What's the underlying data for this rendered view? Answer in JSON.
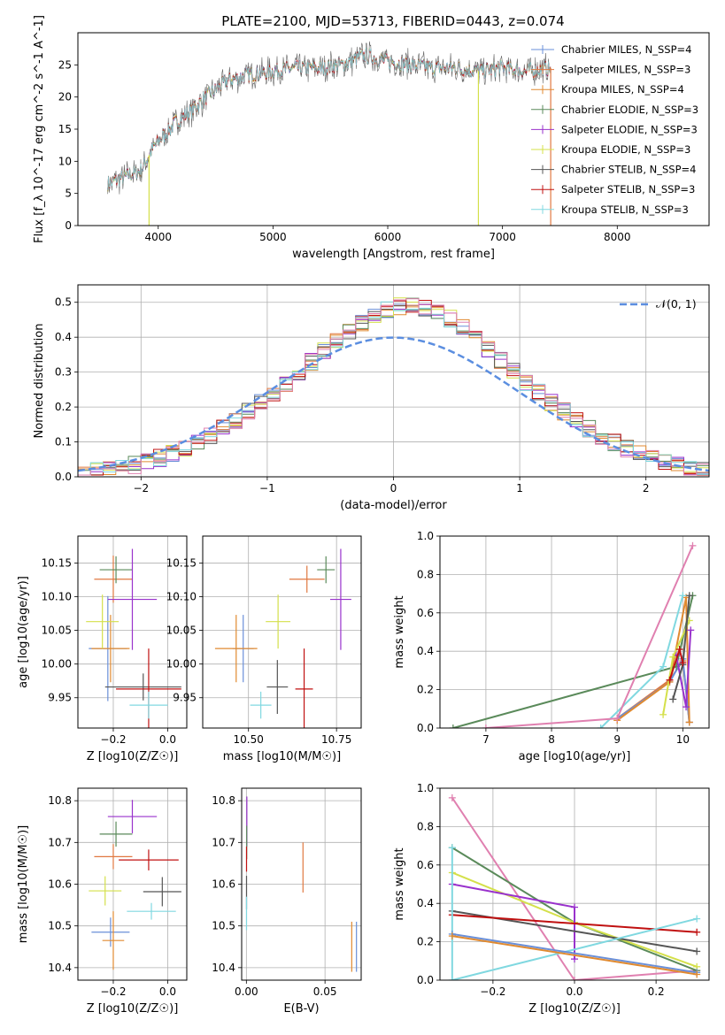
{
  "title": "PLATE=2100, MJD=53713, FIBERID=0443, z=0.074",
  "colors": {
    "Chabrier MILES": "#6a8fd8",
    "Salpeter MILES": "#e07840",
    "Kroupa MILES": "#e08a30",
    "Chabrier ELODIE": "#5a8a5a",
    "Salpeter ELODIE": "#9932cc",
    "Kroupa ELODIE": "#d4e04a",
    "Chabrier STELIB": "#555555",
    "Salpeter STELIB": "#c01010",
    "Kroupa STELIB": "#80d8e0",
    "Gaussian": "#5b8ee0",
    "grid": "#b0b0b0"
  },
  "chart_data": [
    {
      "id": "spectrum",
      "type": "line",
      "xlabel": "wavelength [Angstrom, rest frame]",
      "ylabel": "Flux [f_λ 10^-17 erg cm^-2 s^-1 A^-1]",
      "xlim": [
        3300,
        8800
      ],
      "ylim": [
        0,
        30
      ],
      "xticks": [
        4000,
        5000,
        6000,
        7000,
        8000
      ],
      "yticks": [
        0,
        5,
        10,
        15,
        20,
        25
      ],
      "legend_position": "top-right",
      "legend": [
        {
          "label": "Chabrier MILES, N_SSP=4",
          "model": "Chabrier MILES"
        },
        {
          "label": "Salpeter MILES, N_SSP=3",
          "model": "Salpeter MILES"
        },
        {
          "label": "Kroupa MILES, N_SSP=4",
          "model": "Kroupa MILES"
        },
        {
          "label": "Chabrier ELODIE, N_SSP=3",
          "model": "Chabrier ELODIE"
        },
        {
          "label": "Salpeter ELODIE, N_SSP=3",
          "model": "Salpeter ELODIE"
        },
        {
          "label": "Kroupa ELODIE, N_SSP=3",
          "model": "Kroupa ELODIE"
        },
        {
          "label": "Chabrier STELIB, N_SSP=4",
          "model": "Chabrier STELIB"
        },
        {
          "label": "Salpeter STELIB, N_SSP=3",
          "model": "Salpeter STELIB"
        },
        {
          "label": "Kroupa STELIB, N_SSP=3",
          "model": "Kroupa STELIB"
        }
      ],
      "continuum": [
        [
          3560,
          6.5
        ],
        [
          3700,
          7.5
        ],
        [
          3850,
          8.5
        ],
        [
          3950,
          12
        ],
        [
          4050,
          14
        ],
        [
          4150,
          16
        ],
        [
          4300,
          18
        ],
        [
          4450,
          20.5
        ],
        [
          4600,
          22.5
        ],
        [
          4800,
          23.5
        ],
        [
          5000,
          24
        ],
        [
          5200,
          24.5
        ],
        [
          5400,
          24.5
        ],
        [
          5600,
          25
        ],
        [
          5800,
          26.5
        ],
        [
          6000,
          25.5
        ],
        [
          6200,
          25
        ],
        [
          6400,
          24.5
        ],
        [
          6600,
          24.5
        ],
        [
          6800,
          24
        ],
        [
          7000,
          24.5
        ],
        [
          7200,
          24
        ],
        [
          7420,
          24.5
        ]
      ],
      "drops": [
        [
          3920,
          "Kroupa ELODIE"
        ],
        [
          6790,
          "Kroupa ELODIE"
        ],
        [
          7420,
          "Salpeter MILES"
        ]
      ]
    },
    {
      "id": "residuals",
      "type": "histogram",
      "xlabel": "(data-model)/error",
      "ylabel": "Normed distribution",
      "xlim": [
        -2.5,
        2.5
      ],
      "ylim": [
        0,
        0.55
      ],
      "xticks": [
        -2,
        -1,
        0,
        1,
        2
      ],
      "yticks": [
        0.0,
        0.1,
        0.2,
        0.3,
        0.4,
        0.5
      ],
      "gaussian_label": "𝒩(0, 1)",
      "gaussian_style": "dashed",
      "bin_width": 0.1,
      "x_start": -2.5
    },
    {
      "id": "age-vs-Z",
      "type": "scatter",
      "xlabel": "Z [log10(Z/Z☉)]",
      "ylabel": "age [log10(age/yr)]",
      "xlim": [
        -0.33,
        0.07
      ],
      "ylim": [
        9.905,
        10.19
      ],
      "xticks": [
        -0.2,
        0.0
      ],
      "yticks": [
        9.95,
        10.0,
        10.05,
        10.1,
        10.15
      ],
      "points": [
        {
          "model": "Chabrier MILES",
          "x": -0.22,
          "y": 10.023,
          "xerr": 0.07,
          "yerr": 0.078
        },
        {
          "model": "Salpeter MILES",
          "x": -0.2,
          "y": 10.126,
          "xerr": 0.07,
          "yerr": 0.035
        },
        {
          "model": "Kroupa MILES",
          "x": -0.21,
          "y": 10.023,
          "xerr": 0.07,
          "yerr": 0.05
        },
        {
          "model": "Chabrier ELODIE",
          "x": -0.19,
          "y": 10.14,
          "xerr": 0.06,
          "yerr": 0.02
        },
        {
          "model": "Salpeter ELODIE",
          "x": -0.13,
          "y": 10.096,
          "xerr": 0.09,
          "yerr": 0.075
        },
        {
          "model": "Kroupa ELODIE",
          "x": -0.24,
          "y": 10.063,
          "xerr": 0.06,
          "yerr": 0.04
        },
        {
          "model": "Chabrier STELIB",
          "x": -0.09,
          "y": 9.966,
          "xerr": 0.14,
          "yerr": 0.02
        },
        {
          "model": "Salpeter STELIB",
          "x": -0.07,
          "y": 9.963,
          "xerr": 0.12,
          "yerr": 0.06
        },
        {
          "model": "Kroupa STELIB",
          "x": -0.07,
          "y": 9.939,
          "xerr": 0.07,
          "yerr": 0.02
        }
      ]
    },
    {
      "id": "age-vs-mass",
      "type": "scatter",
      "xlabel": "mass [log10(M/M☉)]",
      "ylabel": "",
      "xlim": [
        10.37,
        10.82
      ],
      "ylim": [
        9.905,
        10.19
      ],
      "xticks": [
        10.5,
        10.75
      ],
      "yticks": [
        9.95,
        10.0,
        10.05,
        10.1,
        10.15
      ],
      "points": [
        {
          "model": "Chabrier MILES",
          "x": 10.485,
          "y": 10.023,
          "xerr": 0.03,
          "yerr": 0.05
        },
        {
          "model": "Salpeter MILES",
          "x": 10.666,
          "y": 10.126,
          "xerr": 0.05,
          "yerr": 0.02
        },
        {
          "model": "Kroupa MILES",
          "x": 10.465,
          "y": 10.023,
          "xerr": 0.06,
          "yerr": 0.05
        },
        {
          "model": "Chabrier ELODIE",
          "x": 10.72,
          "y": 10.14,
          "xerr": 0.025,
          "yerr": 0.02
        },
        {
          "model": "Salpeter ELODIE",
          "x": 10.762,
          "y": 10.096,
          "xerr": 0.03,
          "yerr": 0.075
        },
        {
          "model": "Kroupa ELODIE",
          "x": 10.584,
          "y": 10.063,
          "xerr": 0.035,
          "yerr": 0.04
        },
        {
          "model": "Chabrier STELIB",
          "x": 10.582,
          "y": 9.966,
          "xerr": 0.03,
          "yerr": 0.04
        },
        {
          "model": "Salpeter STELIB",
          "x": 10.658,
          "y": 9.963,
          "xerr": 0.025,
          "yerr": 0.06
        },
        {
          "model": "Kroupa STELIB",
          "x": 10.535,
          "y": 9.939,
          "xerr": 0.03,
          "yerr": 0.02
        }
      ]
    },
    {
      "id": "mass-weight-vs-age",
      "type": "line",
      "xlabel": "age  [log10(age/yr)]",
      "ylabel": "mass weight",
      "xlim": [
        6.3,
        10.4
      ],
      "ylim": [
        0,
        1.0
      ],
      "xticks": [
        7,
        8,
        9,
        10
      ],
      "yticks": [
        0.0,
        0.2,
        0.4,
        0.6,
        0.8,
        1.0
      ],
      "series": [
        {
          "model": "Salpeter MILES",
          "points": [
            [
              9.0,
              0.05
            ],
            [
              9.8,
              0.25
            ],
            [
              10.0,
              0.35
            ],
            [
              10.1,
              0.03
            ]
          ]
        },
        {
          "model": "Chabrier MILES",
          "points": [
            [
              9.0,
              0.05
            ],
            [
              9.8,
              0.24
            ],
            [
              10.0,
              0.36
            ],
            [
              10.1,
              0.03
            ]
          ]
        },
        {
          "model": "Kroupa MILES",
          "points": [
            [
              9.0,
              0.04
            ],
            [
              9.8,
              0.24
            ],
            [
              10.05,
              0.68
            ],
            [
              10.1,
              0.03
            ]
          ]
        },
        {
          "model": "Chabrier ELODIE",
          "points": [
            [
              6.5,
              0.0
            ],
            [
              9.9,
              0.32
            ],
            [
              10.15,
              0.69
            ]
          ]
        },
        {
          "model": "Salpeter ELODIE",
          "points": [
            [
              9.9,
              0.38
            ],
            [
              10.05,
              0.11
            ],
            [
              10.12,
              0.51
            ]
          ]
        },
        {
          "model": "Kroupa ELODIE",
          "points": [
            [
              9.7,
              0.07
            ],
            [
              9.85,
              0.37
            ],
            [
              10.1,
              0.56
            ]
          ]
        },
        {
          "model": "Chabrier STELIB",
          "points": [
            [
              9.85,
              0.15
            ],
            [
              10.0,
              0.33
            ],
            [
              10.1,
              0.69
            ]
          ]
        },
        {
          "model": "Salpeter STELIB",
          "points": [
            [
              9.8,
              0.25
            ],
            [
              9.95,
              0.41
            ],
            [
              10.0,
              0.34
            ]
          ]
        },
        {
          "model": "Kroupa STELIB",
          "points": [
            [
              8.75,
              0.0
            ],
            [
              9.7,
              0.32
            ],
            [
              10.0,
              0.69
            ]
          ]
        },
        {
          "model": "Pink",
          "points": [
            [
              7.0,
              0.0
            ],
            [
              9.0,
              0.05
            ],
            [
              10.15,
              0.95
            ]
          ]
        }
      ]
    },
    {
      "id": "mass-vs-Z",
      "type": "scatter",
      "xlabel": "Z [log10(Z/Z☉)]",
      "ylabel": "mass [log10(M/M☉)]",
      "xlim": [
        -0.33,
        0.07
      ],
      "ylim": [
        10.37,
        10.83
      ],
      "xticks": [
        -0.2,
        0.0
      ],
      "yticks": [
        10.4,
        10.5,
        10.6,
        10.7,
        10.8
      ],
      "points": [
        {
          "model": "Chabrier MILES",
          "x": -0.21,
          "y": 10.485,
          "xerr": 0.07,
          "yerr": 0.035
        },
        {
          "model": "Kroupa MILES",
          "x": -0.2,
          "y": 10.465,
          "xerr": 0.04,
          "yerr": 0.07
        },
        {
          "model": "Salpeter MILES",
          "x": -0.2,
          "y": 10.666,
          "xerr": 0.07,
          "yerr": 0.03
        },
        {
          "model": "Chabrier ELODIE",
          "x": -0.19,
          "y": 10.72,
          "xerr": 0.06,
          "yerr": 0.03
        },
        {
          "model": "Salpeter ELODIE",
          "x": -0.13,
          "y": 10.762,
          "xerr": 0.09,
          "yerr": 0.04
        },
        {
          "model": "Kroupa ELODIE",
          "x": -0.23,
          "y": 10.584,
          "xerr": 0.06,
          "yerr": 0.035
        },
        {
          "model": "Chabrier STELIB",
          "x": -0.02,
          "y": 10.582,
          "xerr": 0.07,
          "yerr": 0.035
        },
        {
          "model": "Salpeter STELIB",
          "x": -0.07,
          "y": 10.658,
          "xerr": 0.11,
          "yerr": 0.025
        },
        {
          "model": "Kroupa STELIB",
          "x": -0.06,
          "y": 10.535,
          "xerr": 0.09,
          "yerr": 0.02
        }
      ]
    },
    {
      "id": "mass-vs-EBV",
      "type": "scatter",
      "xlabel": "E(B-V)",
      "ylabel": "",
      "xlim": [
        -0.003,
        0.073
      ],
      "ylim": [
        10.37,
        10.83
      ],
      "xticks": [
        0.0,
        0.05
      ],
      "yticks": [
        10.4,
        10.5,
        10.6,
        10.7,
        10.8
      ],
      "points": [
        {
          "model": "Chabrier MILES",
          "x": 0.07,
          "y": 10.45,
          "xerr": 0.0,
          "yerr": 0.06
        },
        {
          "model": "Kroupa MILES",
          "x": 0.067,
          "y": 10.45,
          "xerr": 0.0,
          "yerr": 0.06
        },
        {
          "model": "Salpeter MILES",
          "x": 0.036,
          "y": 10.64,
          "xerr": 0.0,
          "yerr": 0.06
        },
        {
          "model": "Salpeter ELODIE",
          "x": 0.0003,
          "y": 10.75,
          "xerr": 0.0,
          "yerr": 0.06
        },
        {
          "model": "Chabrier ELODIE",
          "x": 0.0002,
          "y": 10.7,
          "xerr": 0.0,
          "yerr": 0.04
        },
        {
          "model": "Salpeter STELIB",
          "x": 0.0001,
          "y": 10.66,
          "xerr": 0.0,
          "yerr": 0.03
        },
        {
          "model": "Chabrier STELIB",
          "x": 0.0001,
          "y": 10.58,
          "xerr": 0.0,
          "yerr": 0.04
        },
        {
          "model": "Kroupa STELIB",
          "x": 0.0001,
          "y": 10.53,
          "xerr": 0.0,
          "yerr": 0.04
        }
      ]
    },
    {
      "id": "mass-weight-vs-Z",
      "type": "line",
      "xlabel": "Z [log10(Z/Z☉)]",
      "ylabel": "mass weight",
      "xlim": [
        -0.33,
        0.33
      ],
      "ylim": [
        0,
        1.0
      ],
      "xticks": [
        -0.2,
        0.0,
        0.2
      ],
      "yticks": [
        0.0,
        0.2,
        0.4,
        0.6,
        0.8,
        1.0
      ],
      "series": [
        {
          "model": "Pink",
          "points": [
            [
              -0.3,
              0.95
            ],
            [
              0.0,
              0.0
            ],
            [
              0.3,
              0.05
            ]
          ]
        },
        {
          "model": "Chabrier ELODIE",
          "points": [
            [
              -0.3,
              0.69
            ],
            [
              0.0,
              0.3
            ],
            [
              0.3,
              0.05
            ]
          ]
        },
        {
          "model": "Kroupa ELODIE",
          "points": [
            [
              -0.3,
              0.56
            ],
            [
              0.0,
              0.3
            ],
            [
              0.3,
              0.07
            ]
          ]
        },
        {
          "model": "Salpeter ELODIE",
          "points": [
            [
              -0.3,
              0.5
            ],
            [
              0.0,
              0.38
            ],
            [
              0.0,
              0.11
            ]
          ]
        },
        {
          "model": "Chabrier STELIB",
          "points": [
            [
              -0.3,
              0.36
            ],
            [
              0.3,
              0.15
            ]
          ]
        },
        {
          "model": "Salpeter STELIB",
          "points": [
            [
              -0.3,
              0.34
            ],
            [
              0.3,
              0.25
            ]
          ]
        },
        {
          "model": "Kroupa STELIB",
          "points": [
            [
              -0.3,
              0.69
            ],
            [
              -0.3,
              0.0
            ],
            [
              0.3,
              0.32
            ]
          ]
        },
        {
          "model": "Chabrier MILES",
          "points": [
            [
              -0.3,
              0.24
            ],
            [
              0.3,
              0.04
            ]
          ]
        },
        {
          "model": "Kroupa MILES",
          "points": [
            [
              -0.3,
              0.23
            ],
            [
              0.3,
              0.03
            ]
          ]
        }
      ]
    }
  ]
}
